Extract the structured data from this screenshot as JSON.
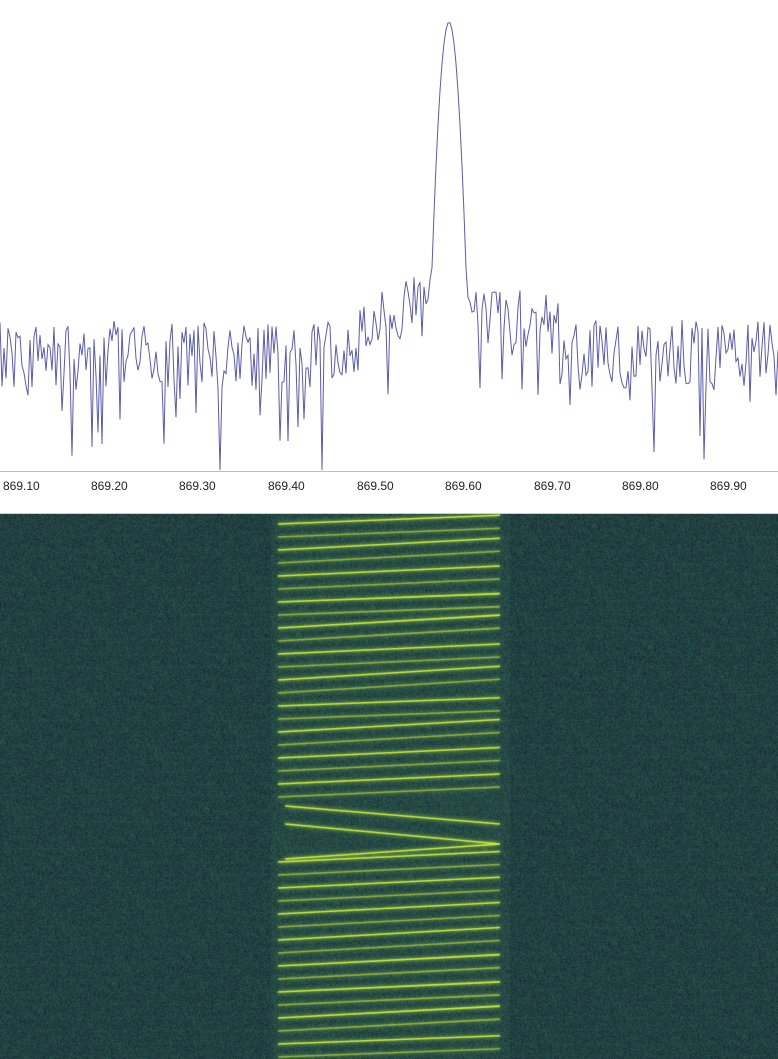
{
  "spectrum": {
    "trace_color": "#5c5ca8",
    "background": "#ffffff"
  },
  "frequency_axis": {
    "ticks": [
      "869.10",
      "869.20",
      "869.30",
      "869.40",
      "869.50",
      "869.60",
      "869.70",
      "869.80",
      "869.90"
    ]
  },
  "waterfall": {
    "background_color": "#1f323d",
    "signal_color": "#c8f040",
    "noise_color": "#2f5a46"
  }
}
